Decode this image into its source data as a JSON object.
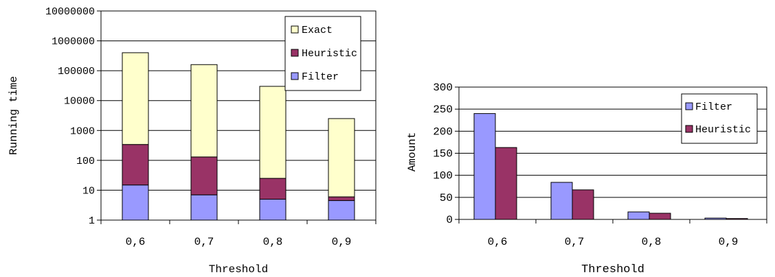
{
  "chart_data": [
    {
      "type": "bar",
      "stacked": true,
      "y_scale": "log",
      "categories": [
        "0,6",
        "0,7",
        "0,8",
        "0,9"
      ],
      "series": [
        {
          "name": "Filter",
          "values": [
            15,
            7,
            5,
            4.5
          ],
          "color": "#9999ff"
        },
        {
          "name": "Heuristic",
          "values": [
            340,
            130,
            25,
            6
          ],
          "color": "#993366"
        },
        {
          "name": "Exact",
          "values": [
            400000,
            160000,
            30000,
            2500
          ],
          "color": "#ffffcc"
        }
      ],
      "xlabel": "Threshold",
      "ylabel": "Running time",
      "ylim": [
        1,
        10000000
      ],
      "y_ticks": [
        "1",
        "10",
        "100",
        "1000",
        "10000",
        "100000",
        "1000000",
        "10000000"
      ],
      "legend": [
        "Exact",
        "Heuristic",
        "Filter"
      ],
      "legend_position": "top-right",
      "grid": true
    },
    {
      "type": "bar",
      "stacked": false,
      "categories": [
        "0,6",
        "0,7",
        "0,8",
        "0,9"
      ],
      "series": [
        {
          "name": "Filter",
          "values": [
            240,
            84,
            17,
            3
          ],
          "color": "#9999ff"
        },
        {
          "name": "Heuristic",
          "values": [
            163,
            67,
            14,
            2
          ],
          "color": "#993366"
        }
      ],
      "xlabel": "Threshold",
      "ylabel": "Amount",
      "ylim": [
        0,
        300
      ],
      "y_ticks": [
        "0",
        "50",
        "100",
        "150",
        "200",
        "250",
        "300"
      ],
      "legend": [
        "Filter",
        "Heuristic"
      ],
      "legend_position": "top-right",
      "grid": true
    }
  ]
}
